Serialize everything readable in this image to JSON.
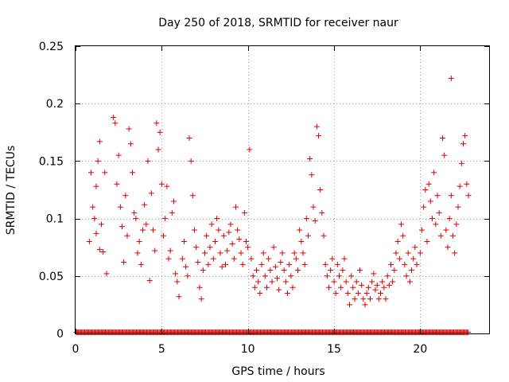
{
  "chart_data": {
    "type": "scatter",
    "title": "Day 250 of 2018, SRMTID for receiver naur",
    "xlabel": "GPS time / hours",
    "ylabel": "SRMTID / TECUs",
    "xlim": [
      0,
      24
    ],
    "ylim": [
      0,
      0.25
    ],
    "xticks": [
      0,
      5,
      10,
      15,
      20
    ],
    "yticks": [
      0,
      0.05,
      0.1,
      0.15,
      0.2,
      0.25
    ],
    "xtick_labels": [
      "0",
      "5",
      "10",
      "15",
      "20"
    ],
    "ytick_labels": [
      "0",
      "0.05",
      "0.1",
      "0.15",
      "0.2",
      "0.25"
    ],
    "grid": true,
    "marker": "+",
    "series": [
      {
        "name": "SRMTID",
        "color": "#dd0000",
        "points": [
          [
            0.8,
            0.08
          ],
          [
            0.9,
            0.14
          ],
          [
            1.0,
            0.11
          ],
          [
            1.1,
            0.1
          ],
          [
            1.2,
            0.128
          ],
          [
            1.3,
            0.15
          ],
          [
            1.4,
            0.167
          ],
          [
            1.5,
            0.095
          ],
          [
            1.6,
            0.071
          ],
          [
            1.7,
            0.14
          ],
          [
            1.8,
            0.052
          ],
          [
            1.2,
            0.087
          ],
          [
            1.4,
            0.073
          ],
          [
            2.2,
            0.188
          ],
          [
            2.3,
            0.183
          ],
          [
            2.4,
            0.13
          ],
          [
            2.5,
            0.155
          ],
          [
            2.6,
            0.11
          ],
          [
            2.7,
            0.093
          ],
          [
            2.8,
            0.062
          ],
          [
            2.9,
            0.12
          ],
          [
            3.0,
            0.085
          ],
          [
            3.1,
            0.178
          ],
          [
            3.2,
            0.165
          ],
          [
            3.3,
            0.14
          ],
          [
            3.4,
            0.105
          ],
          [
            3.5,
            0.1
          ],
          [
            3.6,
            0.07
          ],
          [
            3.7,
            0.08
          ],
          [
            3.8,
            0.06
          ],
          [
            3.9,
            0.09
          ],
          [
            4.0,
            0.112
          ],
          [
            4.1,
            0.095
          ],
          [
            4.2,
            0.15
          ],
          [
            4.3,
            0.046
          ],
          [
            4.4,
            0.122
          ],
          [
            4.5,
            0.09
          ],
          [
            4.6,
            0.072
          ],
          [
            4.7,
            0.183
          ],
          [
            4.8,
            0.16
          ],
          [
            4.9,
            0.175
          ],
          [
            5.0,
            0.13
          ],
          [
            5.1,
            0.085
          ],
          [
            5.2,
            0.1
          ],
          [
            5.3,
            0.128
          ],
          [
            5.4,
            0.065
          ],
          [
            5.5,
            0.072
          ],
          [
            5.6,
            0.105
          ],
          [
            5.7,
            0.115
          ],
          [
            5.8,
            0.052
          ],
          [
            5.9,
            0.045
          ],
          [
            6.0,
            0.032
          ],
          [
            6.2,
            0.065
          ],
          [
            6.3,
            0.08
          ],
          [
            6.4,
            0.058
          ],
          [
            6.5,
            0.05
          ],
          [
            6.6,
            0.17
          ],
          [
            6.7,
            0.15
          ],
          [
            6.8,
            0.12
          ],
          [
            6.9,
            0.09
          ],
          [
            7.0,
            0.075
          ],
          [
            7.1,
            0.062
          ],
          [
            7.2,
            0.04
          ],
          [
            7.3,
            0.03
          ],
          [
            7.4,
            0.055
          ],
          [
            7.5,
            0.07
          ],
          [
            7.6,
            0.085
          ],
          [
            7.7,
            0.06
          ],
          [
            7.8,
            0.075
          ],
          [
            7.9,
            0.095
          ],
          [
            8.0,
            0.065
          ],
          [
            8.1,
            0.08
          ],
          [
            8.2,
            0.1
          ],
          [
            8.3,
            0.09
          ],
          [
            8.4,
            0.07
          ],
          [
            8.5,
            0.058
          ],
          [
            8.6,
            0.085
          ],
          [
            8.7,
            0.06
          ],
          [
            8.8,
            0.072
          ],
          [
            8.9,
            0.088
          ],
          [
            9.0,
            0.095
          ],
          [
            9.1,
            0.078
          ],
          [
            9.2,
            0.065
          ],
          [
            9.3,
            0.11
          ],
          [
            9.4,
            0.09
          ],
          [
            9.5,
            0.082
          ],
          [
            9.6,
            0.07
          ],
          [
            9.7,
            0.06
          ],
          [
            9.8,
            0.105
          ],
          [
            9.9,
            0.08
          ],
          [
            10.0,
            0.075
          ],
          [
            10.1,
            0.16
          ],
          [
            10.2,
            0.065
          ],
          [
            10.3,
            0.05
          ],
          [
            10.4,
            0.04
          ],
          [
            10.5,
            0.055
          ],
          [
            10.6,
            0.045
          ],
          [
            10.7,
            0.035
          ],
          [
            10.8,
            0.06
          ],
          [
            10.9,
            0.07
          ],
          [
            11.0,
            0.05
          ],
          [
            11.1,
            0.04
          ],
          [
            11.2,
            0.065
          ],
          [
            11.3,
            0.055
          ],
          [
            11.4,
            0.045
          ],
          [
            11.5,
            0.075
          ],
          [
            11.6,
            0.058
          ],
          [
            11.7,
            0.048
          ],
          [
            11.8,
            0.038
          ],
          [
            11.9,
            0.062
          ],
          [
            12.0,
            0.07
          ],
          [
            12.1,
            0.055
          ],
          [
            12.2,
            0.045
          ],
          [
            12.3,
            0.035
          ],
          [
            12.4,
            0.06
          ],
          [
            12.5,
            0.05
          ],
          [
            12.6,
            0.04
          ],
          [
            12.7,
            0.07
          ],
          [
            12.8,
            0.065
          ],
          [
            12.9,
            0.055
          ],
          [
            13.0,
            0.09
          ],
          [
            13.1,
            0.08
          ],
          [
            13.2,
            0.07
          ],
          [
            13.3,
            0.06
          ],
          [
            13.4,
            0.1
          ],
          [
            13.5,
            0.085
          ],
          [
            13.6,
            0.152
          ],
          [
            13.7,
            0.138
          ],
          [
            13.8,
            0.11
          ],
          [
            13.9,
            0.098
          ],
          [
            14.0,
            0.18
          ],
          [
            14.1,
            0.172
          ],
          [
            14.2,
            0.125
          ],
          [
            14.3,
            0.105
          ],
          [
            14.4,
            0.085
          ],
          [
            14.5,
            0.06
          ],
          [
            14.6,
            0.05
          ],
          [
            14.7,
            0.04
          ],
          [
            14.8,
            0.055
          ],
          [
            14.9,
            0.065
          ],
          [
            15.0,
            0.045
          ],
          [
            15.1,
            0.035
          ],
          [
            15.2,
            0.06
          ],
          [
            15.3,
            0.05
          ],
          [
            15.4,
            0.04
          ],
          [
            15.5,
            0.055
          ],
          [
            15.6,
            0.065
          ],
          [
            15.7,
            0.045
          ],
          [
            15.8,
            0.035
          ],
          [
            15.9,
            0.025
          ],
          [
            16.0,
            0.05
          ],
          [
            16.1,
            0.04
          ],
          [
            16.2,
            0.03
          ],
          [
            16.3,
            0.045
          ],
          [
            16.4,
            0.035
          ],
          [
            16.5,
            0.055
          ],
          [
            16.6,
            0.042
          ],
          [
            16.7,
            0.03
          ],
          [
            16.8,
            0.025
          ],
          [
            16.9,
            0.035
          ],
          [
            17.0,
            0.04
          ],
          [
            17.1,
            0.03
          ],
          [
            17.2,
            0.045
          ],
          [
            17.3,
            0.052
          ],
          [
            17.4,
            0.038
          ],
          [
            17.5,
            0.042
          ],
          [
            17.6,
            0.03
          ],
          [
            17.7,
            0.035
          ],
          [
            17.8,
            0.045
          ],
          [
            17.9,
            0.04
          ],
          [
            18.0,
            0.03
          ],
          [
            18.1,
            0.05
          ],
          [
            18.2,
            0.042
          ],
          [
            18.3,
            0.06
          ],
          [
            18.4,
            0.045
          ],
          [
            18.5,
            0.055
          ],
          [
            18.6,
            0.07
          ],
          [
            18.7,
            0.08
          ],
          [
            18.8,
            0.065
          ],
          [
            18.9,
            0.095
          ],
          [
            19.0,
            0.085
          ],
          [
            19.1,
            0.06
          ],
          [
            19.2,
            0.05
          ],
          [
            19.3,
            0.07
          ],
          [
            19.4,
            0.045
          ],
          [
            19.5,
            0.055
          ],
          [
            19.6,
            0.065
          ],
          [
            19.7,
            0.075
          ],
          [
            19.8,
            0.06
          ],
          [
            20.0,
            0.07
          ],
          [
            20.1,
            0.09
          ],
          [
            20.2,
            0.11
          ],
          [
            20.3,
            0.125
          ],
          [
            20.4,
            0.08
          ],
          [
            20.5,
            0.13
          ],
          [
            20.6,
            0.115
          ],
          [
            20.7,
            0.1
          ],
          [
            20.8,
            0.14
          ],
          [
            20.9,
            0.095
          ],
          [
            21.0,
            0.12
          ],
          [
            21.1,
            0.105
          ],
          [
            21.2,
            0.085
          ],
          [
            21.3,
            0.17
          ],
          [
            21.4,
            0.155
          ],
          [
            21.5,
            0.09
          ],
          [
            21.6,
            0.075
          ],
          [
            21.7,
            0.1
          ],
          [
            21.8,
            0.12
          ],
          [
            21.9,
            0.085
          ],
          [
            22.0,
            0.07
          ],
          [
            22.1,
            0.095
          ],
          [
            22.2,
            0.11
          ],
          [
            22.3,
            0.128
          ],
          [
            22.4,
            0.148
          ],
          [
            22.5,
            0.165
          ],
          [
            22.6,
            0.172
          ],
          [
            22.7,
            0.13
          ],
          [
            22.8,
            0.12
          ],
          [
            21.8,
            0.222
          ]
        ]
      },
      {
        "name": "SRMTID zeros",
        "color": "#dd0000",
        "x_range": [
          0.05,
          22.8
        ],
        "y": 0.001
      }
    ]
  }
}
